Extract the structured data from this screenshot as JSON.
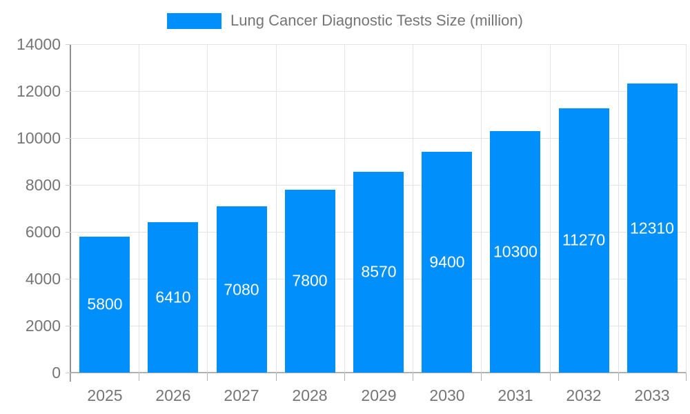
{
  "chart_data": {
    "type": "bar",
    "title": "Lung Cancer Diagnostic Tests Size (million)",
    "legend": {
      "label": "Lung Cancer Diagnostic Tests Size (million)",
      "position": "top-center",
      "marker": "rect"
    },
    "categories": [
      "2025",
      "2026",
      "2027",
      "2028",
      "2029",
      "2030",
      "2031",
      "2032",
      "2033"
    ],
    "series": [
      {
        "name": "Lung Cancer Diagnostic Tests Size (million)",
        "values": [
          5800,
          6410,
          7080,
          7800,
          8570,
          9400,
          10300,
          11270,
          12310
        ]
      }
    ],
    "xlabel": "",
    "ylabel": "",
    "ylim": [
      0,
      14000
    ],
    "yticks": [
      0,
      2000,
      4000,
      6000,
      8000,
      10000,
      12000,
      14000
    ],
    "grid": true,
    "value_labels": {
      "visible": true,
      "position": "inside-center",
      "color": "#ffffff"
    }
  },
  "colors": {
    "bar": "#008FFB",
    "axis_line": "#8f8f8f",
    "baseline": "#b0b0b0",
    "gridline": "#e3e3e3",
    "tick": "#cccccc",
    "label_text": "#757575",
    "value_text": "#ffffff",
    "background": "#ffffff"
  }
}
